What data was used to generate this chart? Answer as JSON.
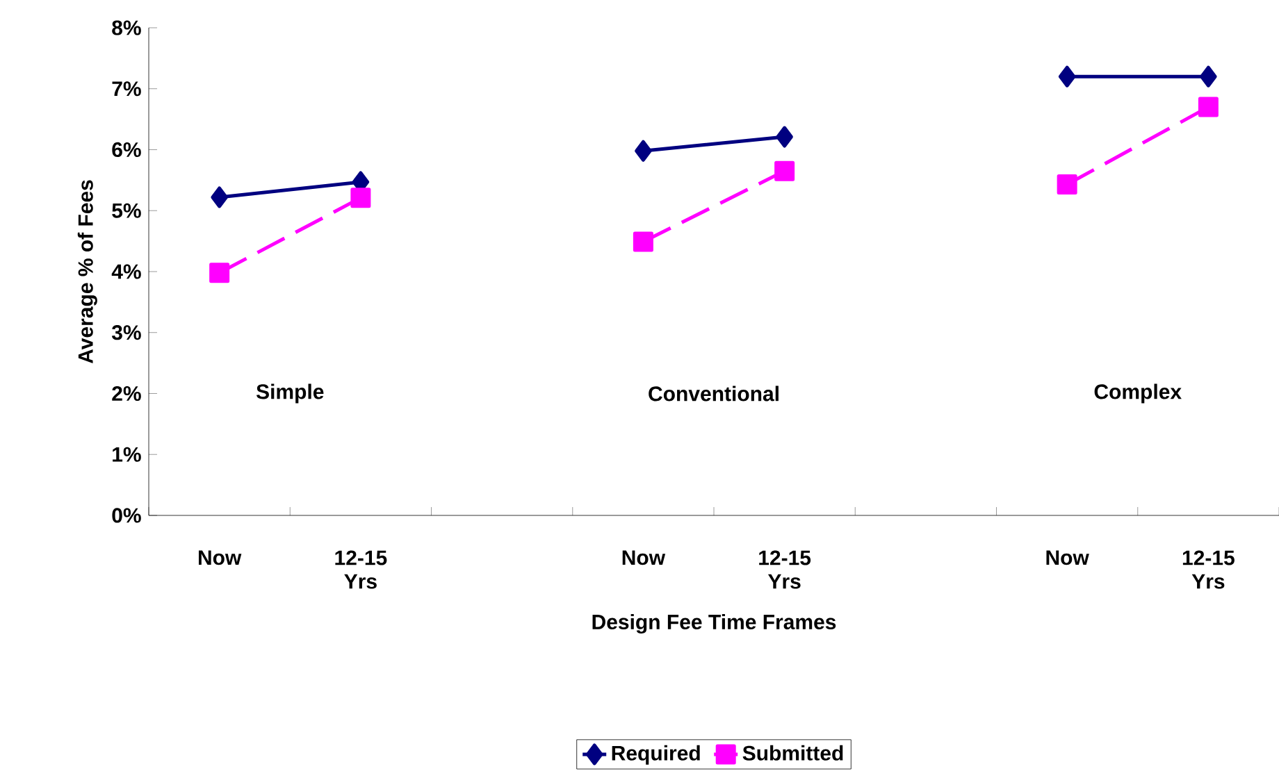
{
  "chart_data": {
    "type": "line",
    "xlabel": "Design Fee Time Frames",
    "ylabel": "Average % of Fees",
    "categories": [
      "Now",
      "12-15 Yrs",
      null,
      "Now",
      "12-15 Yrs",
      null,
      "Now",
      "12-15 Yrs"
    ],
    "series": [
      {
        "name": "Required",
        "color": "#000080",
        "marker": "diamond",
        "line_style": "solid",
        "values": [
          5.22,
          5.47,
          null,
          5.98,
          6.21,
          null,
          7.2,
          7.2
        ]
      },
      {
        "name": "Submitted",
        "color": "#ff00ff",
        "marker": "square",
        "line_style": "dashed",
        "values": [
          3.98,
          5.21,
          null,
          4.49,
          5.65,
          null,
          5.43,
          6.7
        ]
      }
    ],
    "ylim": [
      0,
      8
    ],
    "yticks": [
      {
        "value": 0,
        "label": "0%"
      },
      {
        "value": 1,
        "label": "1%"
      },
      {
        "value": 2,
        "label": "2%"
      },
      {
        "value": 3,
        "label": "3%"
      },
      {
        "value": 4,
        "label": "4%"
      },
      {
        "value": 5,
        "label": "5%"
      },
      {
        "value": 6,
        "label": "6%"
      },
      {
        "value": 7,
        "label": "7%"
      },
      {
        "value": 8,
        "label": "8%"
      }
    ],
    "annotations": [
      "Simple",
      "Conventional",
      "Complex"
    ],
    "grid": false,
    "legend": "bottom"
  }
}
